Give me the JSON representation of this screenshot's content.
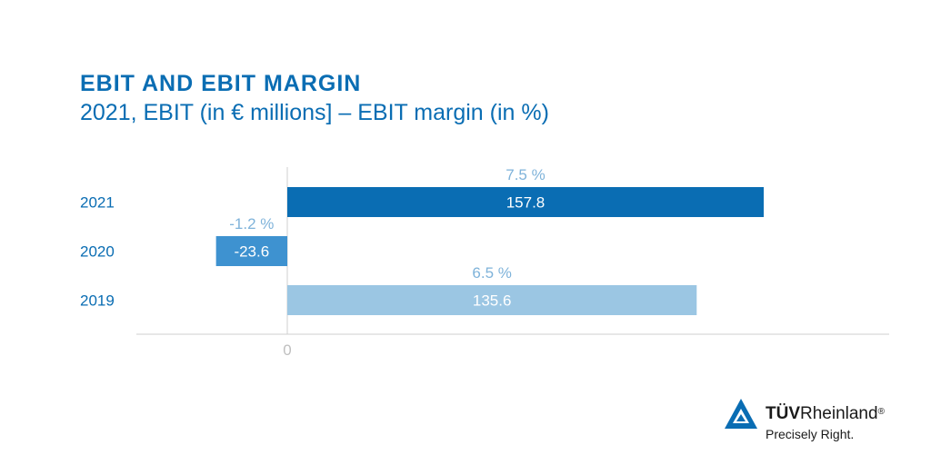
{
  "title": "EBIT AND EBIT MARGIN",
  "subtitle": "2021, EBIT (in € millions] – EBIT margin (in %)",
  "chart_data": {
    "type": "bar",
    "orientation": "horizontal",
    "title": "EBIT AND EBIT MARGIN",
    "subtitle": "2021, EBIT (in € millions] – EBIT margin (in %)",
    "categories": [
      "2021",
      "2020",
      "2019"
    ],
    "values": [
      157.8,
      -23.6,
      135.6
    ],
    "value_labels": [
      "157.8",
      "-23.6",
      "135.6"
    ],
    "margin_labels": [
      "7.5 %",
      "-1.2 %",
      "6.5 %"
    ],
    "margins_pct": [
      7.5,
      -1.2,
      6.5
    ],
    "x_tick_labels": [
      "0"
    ],
    "xlim": [
      -50,
      200
    ],
    "xlabel": "",
    "ylabel": "",
    "grid": false,
    "colors": {
      "bars": [
        "#0a6db3",
        "#3e92d0",
        "#9bc6e3"
      ],
      "label_on_bar": "#ffffff",
      "margin_text": "#7fb3da",
      "category_text": "#0a6db3",
      "axis": "#cfcfcf",
      "tick_text": "#bfbfbf"
    }
  },
  "logo": {
    "brand_bold": "TÜV",
    "brand_regular": "Rheinland",
    "registered": "®",
    "tagline": "Precisely Right.",
    "colors": {
      "mark": "#0a6db3",
      "text": "#1a1a1a"
    }
  }
}
